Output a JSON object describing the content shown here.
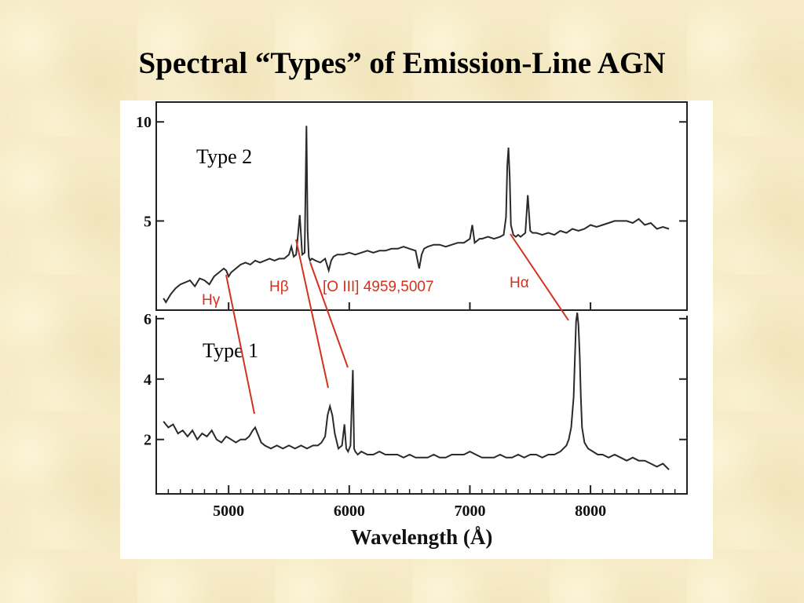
{
  "slide": {
    "title": "Spectral “Types” of Emission-Line AGN"
  },
  "chart_data": [
    {
      "type": "line",
      "panel": "top",
      "label": "Type 2",
      "xlim": [
        4400,
        8800
      ],
      "ylim": [
        0.5,
        11
      ],
      "yticks": [
        5,
        10
      ],
      "ytick_labels": [
        "5",
        "10"
      ],
      "x": [
        4460,
        4480,
        4520,
        4560,
        4600,
        4640,
        4680,
        4720,
        4760,
        4800,
        4840,
        4880,
        4920,
        4960,
        4980,
        5000,
        5020,
        5060,
        5100,
        5140,
        5180,
        5220,
        5260,
        5300,
        5340,
        5380,
        5420,
        5460,
        5500,
        5520,
        5540,
        5560,
        5590,
        5610,
        5630,
        5645,
        5655,
        5665,
        5675,
        5690,
        5720,
        5760,
        5800,
        5830,
        5850,
        5870,
        5900,
        5950,
        6000,
        6050,
        6100,
        6150,
        6200,
        6250,
        6300,
        6350,
        6400,
        6450,
        6500,
        6550,
        6580,
        6600,
        6620,
        6650,
        6700,
        6750,
        6800,
        6850,
        6900,
        6950,
        7000,
        7020,
        7040,
        7060,
        7080,
        7100,
        7150,
        7200,
        7250,
        7280,
        7300,
        7310,
        7320,
        7330,
        7340,
        7360,
        7380,
        7400,
        7420,
        7440,
        7460,
        7480,
        7500,
        7520,
        7550,
        7600,
        7650,
        7700,
        7750,
        7800,
        7850,
        7900,
        7950,
        8000,
        8050,
        8100,
        8150,
        8200,
        8250,
        8300,
        8350,
        8400,
        8450,
        8500,
        8550,
        8600,
        8650
      ],
      "y": [
        1.1,
        0.9,
        1.3,
        1.6,
        1.8,
        1.9,
        2.0,
        1.7,
        2.1,
        2.0,
        1.8,
        2.2,
        2.4,
        2.6,
        2.5,
        2.2,
        2.4,
        2.6,
        2.8,
        2.9,
        2.8,
        3.0,
        2.9,
        3.0,
        3.1,
        3.0,
        3.1,
        3.1,
        3.3,
        3.7,
        3.2,
        3.3,
        5.3,
        3.3,
        3.4,
        9.8,
        4.5,
        3.2,
        3.0,
        3.1,
        3.0,
        2.9,
        3.1,
        2.5,
        3.0,
        3.2,
        3.3,
        3.3,
        3.4,
        3.3,
        3.4,
        3.5,
        3.4,
        3.5,
        3.5,
        3.6,
        3.6,
        3.7,
        3.6,
        3.5,
        2.6,
        3.3,
        3.6,
        3.7,
        3.8,
        3.8,
        3.7,
        3.8,
        3.9,
        3.9,
        4.1,
        4.8,
        3.9,
        4.0,
        4.1,
        4.1,
        4.2,
        4.1,
        4.2,
        4.3,
        5.2,
        7.8,
        8.7,
        7.2,
        4.8,
        4.3,
        4.2,
        4.3,
        4.2,
        4.3,
        4.4,
        6.3,
        4.5,
        4.4,
        4.4,
        4.3,
        4.4,
        4.3,
        4.5,
        4.4,
        4.6,
        4.5,
        4.6,
        4.8,
        4.7,
        4.8,
        4.9,
        5.0,
        5.0,
        5.0,
        4.9,
        5.1,
        4.8,
        4.9,
        4.6,
        4.7,
        4.6
      ]
    },
    {
      "type": "line",
      "panel": "bottom",
      "label": "Type 1",
      "xlim": [
        4400,
        8800
      ],
      "ylim": [
        0.2,
        6.1
      ],
      "yticks": [
        2,
        4,
        6
      ],
      "ytick_labels": [
        "2",
        "4",
        "6"
      ],
      "xticks": [
        5000,
        6000,
        7000,
        8000
      ],
      "xtick_labels": [
        "5000",
        "6000",
        "7000",
        "8000"
      ],
      "xlabel": "Wavelength (Å)",
      "x": [
        4460,
        4500,
        4540,
        4580,
        4620,
        4660,
        4700,
        4740,
        4780,
        4820,
        4860,
        4900,
        4940,
        4980,
        5020,
        5060,
        5100,
        5140,
        5170,
        5200,
        5220,
        5240,
        5270,
        5300,
        5350,
        5400,
        5450,
        5500,
        5550,
        5600,
        5650,
        5700,
        5740,
        5770,
        5800,
        5820,
        5840,
        5860,
        5880,
        5910,
        5940,
        5960,
        5975,
        5990,
        6010,
        6030,
        6040,
        6050,
        6070,
        6100,
        6150,
        6200,
        6250,
        6300,
        6350,
        6400,
        6450,
        6500,
        6550,
        6600,
        6650,
        6700,
        6750,
        6800,
        6850,
        6900,
        6950,
        7000,
        7050,
        7100,
        7150,
        7200,
        7250,
        7300,
        7350,
        7400,
        7450,
        7500,
        7550,
        7600,
        7650,
        7700,
        7750,
        7800,
        7820,
        7840,
        7860,
        7870,
        7880,
        7890,
        7900,
        7910,
        7920,
        7930,
        7950,
        7980,
        8020,
        8060,
        8100,
        8150,
        8200,
        8250,
        8300,
        8350,
        8400,
        8450,
        8500,
        8550,
        8600,
        8650
      ],
      "y": [
        2.6,
        2.4,
        2.5,
        2.2,
        2.3,
        2.1,
        2.3,
        2.0,
        2.2,
        2.1,
        2.3,
        2.0,
        1.9,
        2.1,
        2.0,
        1.9,
        2.0,
        2.0,
        2.1,
        2.3,
        2.4,
        2.2,
        1.9,
        1.8,
        1.7,
        1.8,
        1.7,
        1.8,
        1.7,
        1.8,
        1.7,
        1.8,
        1.8,
        1.9,
        2.1,
        2.8,
        3.1,
        2.8,
        2.2,
        1.7,
        1.8,
        2.5,
        1.7,
        1.6,
        1.8,
        4.3,
        1.7,
        1.6,
        1.5,
        1.6,
        1.5,
        1.5,
        1.6,
        1.5,
        1.5,
        1.5,
        1.4,
        1.5,
        1.4,
        1.4,
        1.4,
        1.5,
        1.4,
        1.4,
        1.5,
        1.5,
        1.5,
        1.6,
        1.5,
        1.4,
        1.4,
        1.4,
        1.5,
        1.4,
        1.4,
        1.5,
        1.4,
        1.5,
        1.5,
        1.4,
        1.5,
        1.5,
        1.6,
        1.8,
        2.0,
        2.4,
        3.4,
        4.6,
        5.9,
        6.2,
        5.8,
        4.8,
        3.4,
        2.4,
        1.9,
        1.7,
        1.6,
        1.5,
        1.5,
        1.4,
        1.5,
        1.4,
        1.3,
        1.4,
        1.3,
        1.3,
        1.2,
        1.1,
        1.2,
        1.0
      ]
    }
  ],
  "annotations": [
    {
      "name": "hgamma",
      "text": "Hγ"
    },
    {
      "name": "hbeta",
      "text": "Hβ"
    },
    {
      "name": "oiii",
      "text": "[O III] 4959,5007"
    },
    {
      "name": "halpha",
      "text": "Hα"
    }
  ],
  "colors": {
    "annotation": "#d2321e",
    "spectrum": "#2a2a2a",
    "background": "#f6ebc6"
  }
}
